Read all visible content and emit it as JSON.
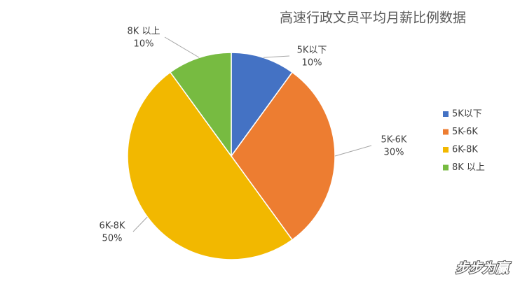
{
  "chart_data": {
    "type": "pie",
    "title": "高速行政文员平均月薪比例数据",
    "categories": [
      "5K以下",
      "5K-6K",
      "6K-8K",
      "8K 以上"
    ],
    "values": [
      10,
      30,
      50,
      10
    ],
    "value_labels": [
      "10%",
      "30%",
      "50%",
      "10%"
    ],
    "colors": [
      "#4472c4",
      "#ed7d31",
      "#f2b800",
      "#77bb41"
    ],
    "legend": "right"
  },
  "watermark": "步步为赢"
}
